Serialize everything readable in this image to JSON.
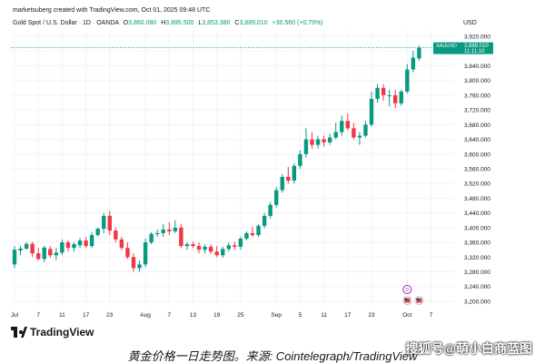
{
  "header": {
    "created_by": "marketsuberg created with TradingView.com, Oct 01, 2025 09:48 UTC"
  },
  "symbol": {
    "name": "Gold Spot / U.S. Dollar · 1D · OANDA",
    "open_label": "O",
    "open": "3,860.080",
    "high_label": "H",
    "high": "3,895.500",
    "low_label": "L",
    "low": "3,853.380",
    "close_label": "C",
    "close": "3,889.010",
    "change": "+30.560 (+0.79%)"
  },
  "currency": "USD",
  "price_tag": {
    "ticker": "XAUUSD",
    "price": "3,889.010",
    "countdown": "11:11:10"
  },
  "logo_text": "TradingView",
  "caption": "黄金价格一日走势图。来源: Cointelegraph/TradingView",
  "watermark": "搜狐号@萌小白商蓝图",
  "colors": {
    "up": "#089981",
    "down": "#f23645",
    "grid": "#f0f3fa",
    "text": "#131722"
  },
  "chart_data": {
    "type": "candlestick",
    "y_ticks": [
      "3,920.000",
      "3,880.000",
      "3,840.000",
      "3,800.000",
      "3,760.000",
      "3,720.000",
      "3,680.000",
      "3,640.000",
      "3,600.000",
      "3,560.000",
      "3,520.000",
      "3,480.000",
      "3,440.000",
      "3,400.000",
      "3,360.000",
      "3,320.000",
      "3,280.000",
      "3,240.000",
      "3,200.000"
    ],
    "ylim": [
      3185,
      3935
    ],
    "x_ticks": [
      {
        "i": 0,
        "label": "Jul"
      },
      {
        "i": 4,
        "label": "7"
      },
      {
        "i": 8,
        "label": "11"
      },
      {
        "i": 12,
        "label": "17"
      },
      {
        "i": 16,
        "label": "23"
      },
      {
        "i": 22,
        "label": "Aug"
      },
      {
        "i": 26,
        "label": "7"
      },
      {
        "i": 30,
        "label": "13"
      },
      {
        "i": 34,
        "label": "19"
      },
      {
        "i": 38,
        "label": "25"
      },
      {
        "i": 44,
        "label": "Sep"
      },
      {
        "i": 48,
        "label": "5"
      },
      {
        "i": 52,
        "label": "11"
      },
      {
        "i": 56,
        "label": "17"
      },
      {
        "i": 60,
        "label": "23"
      },
      {
        "i": 66,
        "label": "Oct"
      },
      {
        "i": 70,
        "label": "7"
      }
    ],
    "candles": [
      [
        3300,
        3350,
        3290,
        3340
      ],
      [
        3338,
        3350,
        3325,
        3343
      ],
      [
        3343,
        3360,
        3340,
        3356
      ],
      [
        3356,
        3362,
        3320,
        3330
      ],
      [
        3330,
        3345,
        3310,
        3315
      ],
      [
        3315,
        3350,
        3306,
        3346
      ],
      [
        3342,
        3350,
        3318,
        3325
      ],
      [
        3325,
        3345,
        3312,
        3332
      ],
      [
        3332,
        3368,
        3325,
        3360
      ],
      [
        3360,
        3365,
        3335,
        3345
      ],
      [
        3345,
        3360,
        3335,
        3355
      ],
      [
        3352,
        3372,
        3345,
        3365
      ],
      [
        3365,
        3375,
        3345,
        3350
      ],
      [
        3350,
        3388,
        3345,
        3380
      ],
      [
        3380,
        3400,
        3376,
        3397
      ],
      [
        3397,
        3440,
        3385,
        3432
      ],
      [
        3432,
        3445,
        3380,
        3392
      ],
      [
        3392,
        3400,
        3360,
        3368
      ],
      [
        3368,
        3375,
        3340,
        3345
      ],
      [
        3345,
        3360,
        3315,
        3320
      ],
      [
        3320,
        3330,
        3280,
        3290
      ],
      [
        3290,
        3310,
        3280,
        3300
      ],
      [
        3300,
        3370,
        3292,
        3360
      ],
      [
        3360,
        3388,
        3355,
        3383
      ],
      [
        3383,
        3395,
        3375,
        3385
      ],
      [
        3385,
        3410,
        3375,
        3395
      ],
      [
        3395,
        3415,
        3380,
        3390
      ],
      [
        3390,
        3420,
        3385,
        3400
      ],
      [
        3400,
        3410,
        3345,
        3350
      ],
      [
        3350,
        3360,
        3340,
        3355
      ],
      [
        3355,
        3362,
        3345,
        3350
      ],
      [
        3350,
        3360,
        3330,
        3340
      ],
      [
        3340,
        3355,
        3330,
        3348
      ],
      [
        3348,
        3355,
        3328,
        3335
      ],
      [
        3335,
        3350,
        3320,
        3325
      ],
      [
        3325,
        3348,
        3318,
        3342
      ],
      [
        3342,
        3360,
        3335,
        3352
      ],
      [
        3352,
        3362,
        3340,
        3348
      ],
      [
        3348,
        3375,
        3340,
        3370
      ],
      [
        3370,
        3390,
        3365,
        3385
      ],
      [
        3385,
        3402,
        3375,
        3380
      ],
      [
        3380,
        3410,
        3375,
        3405
      ],
      [
        3405,
        3440,
        3398,
        3432
      ],
      [
        3432,
        3470,
        3425,
        3462
      ],
      [
        3462,
        3510,
        3455,
        3502
      ],
      [
        3502,
        3545,
        3495,
        3538
      ],
      [
        3538,
        3565,
        3520,
        3528
      ],
      [
        3528,
        3575,
        3520,
        3568
      ],
      [
        3568,
        3610,
        3560,
        3600
      ],
      [
        3600,
        3670,
        3590,
        3640
      ],
      [
        3640,
        3660,
        3615,
        3625
      ],
      [
        3625,
        3650,
        3615,
        3640
      ],
      [
        3640,
        3650,
        3620,
        3632
      ],
      [
        3632,
        3655,
        3625,
        3645
      ],
      [
        3645,
        3685,
        3640,
        3660
      ],
      [
        3660,
        3705,
        3650,
        3690
      ],
      [
        3690,
        3710,
        3665,
        3670
      ],
      [
        3670,
        3685,
        3640,
        3645
      ],
      [
        3645,
        3660,
        3625,
        3650
      ],
      [
        3650,
        3690,
        3645,
        3680
      ],
      [
        3680,
        3770,
        3675,
        3750
      ],
      [
        3750,
        3790,
        3740,
        3780
      ],
      [
        3780,
        3790,
        3745,
        3760
      ],
      [
        3760,
        3775,
        3730,
        3760
      ],
      [
        3760,
        3775,
        3725,
        3738
      ],
      [
        3738,
        3775,
        3732,
        3770
      ],
      [
        3770,
        3845,
        3765,
        3830
      ],
      [
        3830,
        3880,
        3822,
        3862
      ],
      [
        3860,
        3895,
        3853,
        3889
      ]
    ],
    "current_price": 3889.01,
    "events": [
      {
        "i": 66,
        "type": "dividend-like",
        "label": "D"
      },
      {
        "i": 66,
        "type": "flag",
        "label": "US"
      },
      {
        "i": 68,
        "type": "flag",
        "label": "US"
      }
    ]
  }
}
